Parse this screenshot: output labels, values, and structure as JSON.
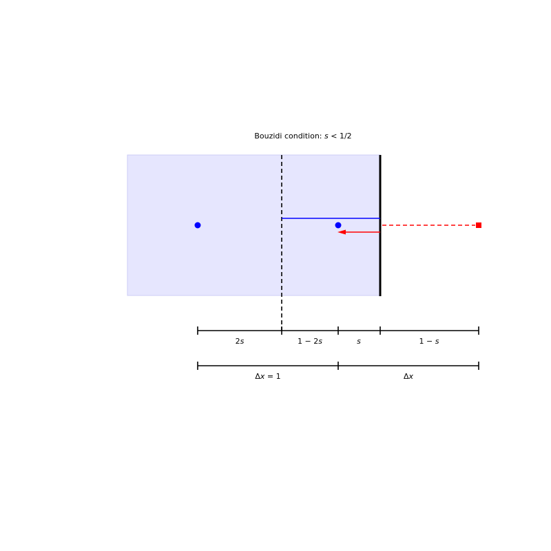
{
  "title": {
    "prefix": "Bouzidi condition: ",
    "math": "s",
    "suffix": " < 1/2"
  },
  "colors": {
    "fluid_region": "#e6e6fe",
    "fluid_region_edge": "#ccccf5",
    "fluid_node": "#0000ff",
    "bounce_path": "#0000ff",
    "ghost_path": "#ff0000",
    "ghost_node": "#ff0000",
    "wall": "#000000",
    "reference_line": "#000000",
    "ruler": "#000000"
  },
  "icons": {
    "fluid_nodes": "filled-circle",
    "ghost_node": "filled-square",
    "reflected_population": "left-arrow"
  },
  "upper_ruler_labels": [
    {
      "num": "2",
      "var": "s",
      "pre": ""
    },
    {
      "num": "1 − 2",
      "var": "s",
      "pre": ""
    },
    {
      "num": "",
      "var": "s",
      "pre": ""
    },
    {
      "num": "1 − ",
      "var": "s",
      "pre": ""
    }
  ],
  "lower_ruler_labels": [
    {
      "delta": "Δ",
      "var": "x",
      "rest": " = 1"
    },
    {
      "delta": "Δ",
      "var": "x",
      "rest": ""
    }
  ]
}
